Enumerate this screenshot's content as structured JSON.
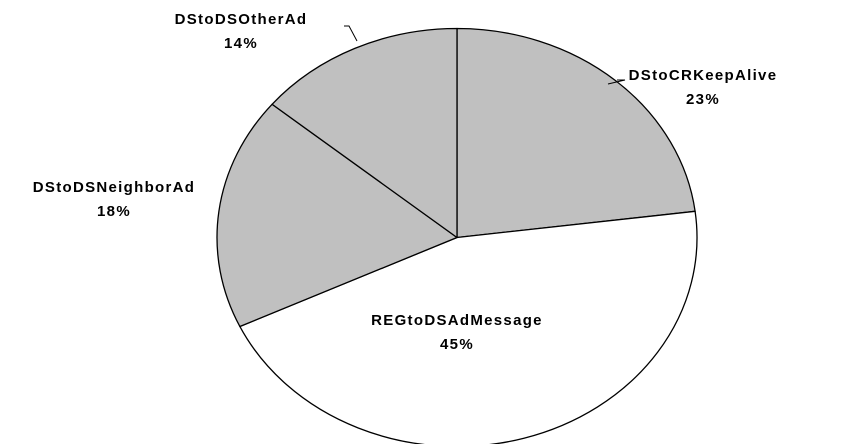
{
  "chart_data": {
    "type": "pie",
    "title": "",
    "slices": [
      {
        "label": "DStoCRKeepAlive",
        "value": 23,
        "value_label": "23%",
        "color": "#c0c0c0"
      },
      {
        "label": "REGtoDSAdMessage",
        "value": 45,
        "value_label": "45%",
        "color": "#ffffff"
      },
      {
        "label": "DStoDSNeighborAd",
        "value": 18,
        "value_label": "18%",
        "color": "#c0c0c0"
      },
      {
        "label": "DStoDSOtherAd",
        "value": 14,
        "value_label": "14%",
        "color": "#c0c0c0"
      }
    ],
    "start": "12 o'clock",
    "direction": "clockwise",
    "outline_color": "#000000",
    "legend": "none"
  }
}
